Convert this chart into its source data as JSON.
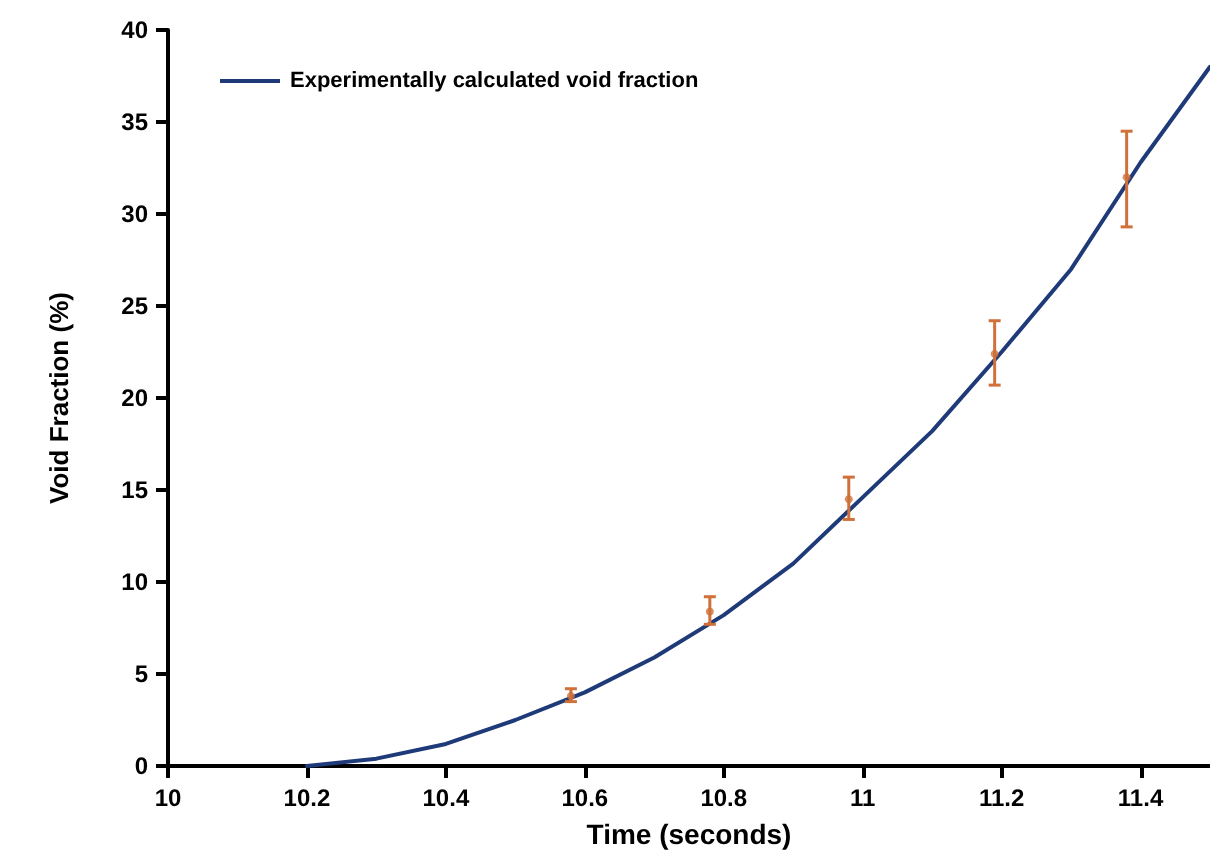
{
  "chart_data": {
    "type": "line",
    "xlabel": "Time (seconds)",
    "ylabel": "Void Fraction (%)",
    "xlim": [
      10,
      11.5
    ],
    "xticks": [
      10,
      10.2,
      10.4,
      10.6,
      10.8,
      11,
      11.2,
      11.4
    ],
    "ylim": [
      0,
      40
    ],
    "yticks": [
      0,
      5,
      10,
      15,
      20,
      25,
      30,
      35,
      40
    ],
    "grid": false,
    "legend": "top left",
    "marker": "none",
    "line_style": "solid",
    "series": [
      {
        "name": "Experimentally calculated void fraction",
        "color": "#1f3a78",
        "x": [
          10.2,
          10.3,
          10.4,
          10.5,
          10.6,
          10.7,
          10.8,
          10.9,
          11.0,
          11.1,
          11.2,
          11.3,
          11.4,
          11.5
        ],
        "values": [
          0,
          0.4,
          1.2,
          2.5,
          4.0,
          5.9,
          8.2,
          11.0,
          14.6,
          18.2,
          22.5,
          27.0,
          32.8,
          38.0
        ]
      },
      {
        "type": "scatter",
        "marker": "circle",
        "color": "#d0703a",
        "x": [
          10.58,
          10.78,
          10.98,
          11.19,
          11.38
        ],
        "values": [
          3.8,
          8.4,
          14.5,
          22.4,
          32
        ],
        "errors": [
          [
            3.5,
            4.2
          ],
          [
            7.7,
            9.2
          ],
          [
            13.4,
            15.7
          ],
          [
            20.7,
            24.2
          ],
          [
            29.3,
            34.5
          ]
        ]
      }
    ]
  }
}
